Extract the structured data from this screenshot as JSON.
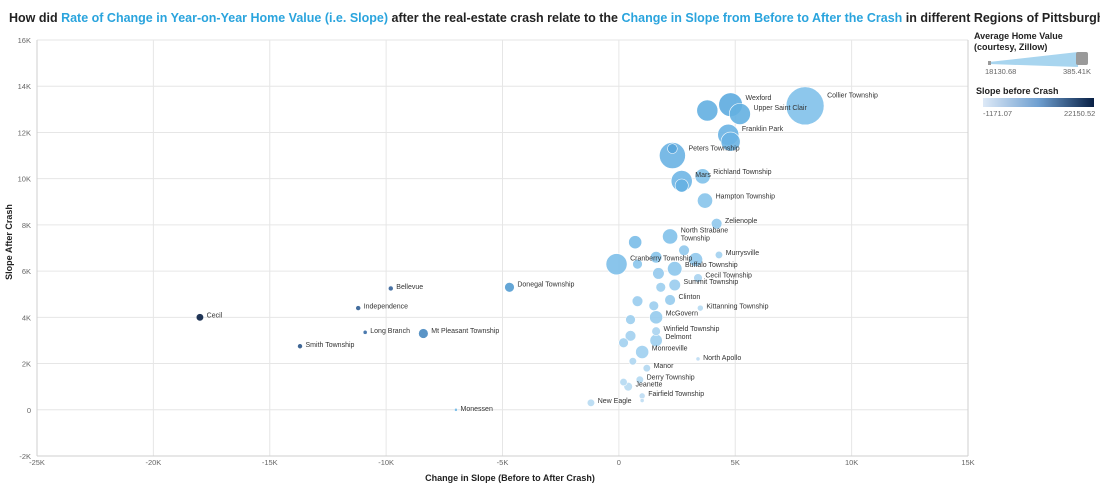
{
  "title": {
    "p1": "How did ",
    "hl1": "Rate of Change in Year-on-Year Home Value (i.e. Slope)",
    "p2": " after the real-estate crash relate to the ",
    "hl2": "Change in Slope from Before to After the Crash",
    "p3": " in different Regions of Pittsburgh?"
  },
  "legend": {
    "size_title_1": "Average Home Value",
    "size_title_2": "(courtesy, Zillow)",
    "size_min": "18130.68",
    "size_max": "385.41K",
    "color_title": "Slope before Crash",
    "color_min": "-1171.07",
    "color_max": "22150.52"
  },
  "colors": {
    "accent": "#2aa4dd",
    "grid": "#e6e6e6",
    "color_low": "#dde9f7",
    "color_high": "#081f44"
  },
  "chart_data": {
    "type": "scatter",
    "xlabel": "Change in Slope (Before to After Crash)",
    "ylabel": "Slope After Crash",
    "xlim": [
      -25000,
      15000
    ],
    "ylim": [
      -2000,
      16000
    ],
    "x_ticks": [
      {
        "v": -25000,
        "label": "-25K"
      },
      {
        "v": -20000,
        "label": "-20K"
      },
      {
        "v": -15000,
        "label": "-15K"
      },
      {
        "v": -10000,
        "label": "-10K"
      },
      {
        "v": -5000,
        "label": "-5K"
      },
      {
        "v": 0,
        "label": "0"
      },
      {
        "v": 5000,
        "label": "5K"
      },
      {
        "v": 10000,
        "label": "10K"
      },
      {
        "v": 15000,
        "label": "15K"
      }
    ],
    "y_ticks": [
      {
        "v": -2000,
        "label": "-2K"
      },
      {
        "v": 0,
        "label": "0"
      },
      {
        "v": 2000,
        "label": "2K"
      },
      {
        "v": 4000,
        "label": "4K"
      },
      {
        "v": 6000,
        "label": "6K"
      },
      {
        "v": 8000,
        "label": "8K"
      },
      {
        "v": 10000,
        "label": "10K"
      },
      {
        "v": 12000,
        "label": "12K"
      },
      {
        "v": 14000,
        "label": "14K"
      },
      {
        "v": 16000,
        "label": "16K"
      }
    ],
    "points": [
      {
        "label": "Collier Township",
        "x": 8000,
        "y": 13150,
        "value": 385000,
        "slope_before": 5200
      },
      {
        "label": "Wexford",
        "x": 4800,
        "y": 13200,
        "value": 160000,
        "slope_before": 8400
      },
      {
        "label": "Upper Saint Clair",
        "x": 5200,
        "y": 12800,
        "value": 130000,
        "slope_before": 7700
      },
      {
        "label": "",
        "x": 3800,
        "y": 12950,
        "value": 130000,
        "slope_before": 7800
      },
      {
        "label": "Franklin Park",
        "x": 4700,
        "y": 11900,
        "value": 130000,
        "slope_before": 7200
      },
      {
        "label": "",
        "x": 4800,
        "y": 11600,
        "value": 110000,
        "slope_before": 7200
      },
      {
        "label": "Peters Township",
        "x": 2300,
        "y": 11000,
        "value": 190000,
        "slope_before": 7200
      },
      {
        "label": "",
        "x": 2300,
        "y": 11300,
        "value": 40000,
        "slope_before": 9000
      },
      {
        "label": "Mars",
        "x": 2700,
        "y": 9900,
        "value": 130000,
        "slope_before": 6800
      },
      {
        "label": "",
        "x": 2700,
        "y": 9700,
        "value": 60000,
        "slope_before": 7600
      },
      {
        "label": "Richland Township",
        "x": 3600,
        "y": 10100,
        "value": 75000,
        "slope_before": 5200
      },
      {
        "label": "Hampton Township",
        "x": 3700,
        "y": 9050,
        "value": 75000,
        "slope_before": 4800
      },
      {
        "label": "Zelienople",
        "x": 4200,
        "y": 8050,
        "value": 45000,
        "slope_before": 4200
      },
      {
        "label": "North Strabane Township",
        "x": 2200,
        "y": 7500,
        "value": 75000,
        "slope_before": 5200
      },
      {
        "label": "",
        "x": 700,
        "y": 7250,
        "value": 60000,
        "slope_before": 5800
      },
      {
        "label": "Murrysville",
        "x": 4300,
        "y": 6700,
        "value": 30000,
        "slope_before": 3000
      },
      {
        "label": "",
        "x": 2800,
        "y": 6900,
        "value": 45000,
        "slope_before": 4200
      },
      {
        "label": "",
        "x": 3300,
        "y": 6500,
        "value": 65000,
        "slope_before": 4200
      },
      {
        "label": "Cranberry Township",
        "x": -100,
        "y": 6300,
        "value": 130000,
        "slope_before": 5500
      },
      {
        "label": "",
        "x": 800,
        "y": 6300,
        "value": 40000,
        "slope_before": 4600
      },
      {
        "label": "",
        "x": 1600,
        "y": 6600,
        "value": 50000,
        "slope_before": 4800
      },
      {
        "label": "Buffalo Township",
        "x": 2400,
        "y": 6100,
        "value": 70000,
        "slope_before": 4400
      },
      {
        "label": "",
        "x": 1700,
        "y": 5900,
        "value": 50000,
        "slope_before": 4000
      },
      {
        "label": "Cecil Township",
        "x": 3400,
        "y": 5700,
        "value": 35000,
        "slope_before": 2600
      },
      {
        "label": "Summit Township",
        "x": 2400,
        "y": 5400,
        "value": 50000,
        "slope_before": 3600
      },
      {
        "label": "",
        "x": 1800,
        "y": 5300,
        "value": 40000,
        "slope_before": 3400
      },
      {
        "label": "Clinton",
        "x": 2200,
        "y": 4750,
        "value": 45000,
        "slope_before": 3800
      },
      {
        "label": "",
        "x": 800,
        "y": 4700,
        "value": 45000,
        "slope_before": 3600
      },
      {
        "label": "",
        "x": 1500,
        "y": 4500,
        "value": 40000,
        "slope_before": 3500
      },
      {
        "label": "Kittanning Township",
        "x": 3500,
        "y": 4400,
        "value": 25000,
        "slope_before": 1800
      },
      {
        "label": "McGovern",
        "x": 1600,
        "y": 4000,
        "value": 60000,
        "slope_before": 3800
      },
      {
        "label": "",
        "x": 500,
        "y": 3900,
        "value": 40000,
        "slope_before": 3400
      },
      {
        "label": "Winfield Township",
        "x": 1600,
        "y": 3400,
        "value": 35000,
        "slope_before": 2600
      },
      {
        "label": "Delmont",
        "x": 1600,
        "y": 3000,
        "value": 55000,
        "slope_before": 3400
      },
      {
        "label": "",
        "x": 500,
        "y": 3200,
        "value": 45000,
        "slope_before": 3000
      },
      {
        "label": "",
        "x": 200,
        "y": 2900,
        "value": 40000,
        "slope_before": 3000
      },
      {
        "label": "Monroeville",
        "x": 1000,
        "y": 2500,
        "value": 60000,
        "slope_before": 3200
      },
      {
        "label": "North Apollo",
        "x": 3400,
        "y": 2200,
        "value": 20000,
        "slope_before": 1200
      },
      {
        "label": "Manor",
        "x": 1200,
        "y": 1800,
        "value": 30000,
        "slope_before": 2000
      },
      {
        "label": "",
        "x": 600,
        "y": 2100,
        "value": 30000,
        "slope_before": 2200
      },
      {
        "label": "Derry Township",
        "x": 900,
        "y": 1300,
        "value": 30000,
        "slope_before": 1800
      },
      {
        "label": "Jeanette",
        "x": 400,
        "y": 1000,
        "value": 35000,
        "slope_before": 1600
      },
      {
        "label": "",
        "x": 200,
        "y": 1200,
        "value": 30000,
        "slope_before": 1800
      },
      {
        "label": "Fairfield Township",
        "x": 1000,
        "y": 600,
        "value": 25000,
        "slope_before": 1200
      },
      {
        "label": "",
        "x": 1000,
        "y": 400,
        "value": 20000,
        "slope_before": 1100
      },
      {
        "label": "New Eagle",
        "x": -1200,
        "y": 300,
        "value": 30000,
        "slope_before": 1600
      },
      {
        "label": "Donegal Township",
        "x": -4700,
        "y": 5300,
        "value": 40000,
        "slope_before": 9800
      },
      {
        "label": "Bellevue",
        "x": -9800,
        "y": 5250,
        "value": 22000,
        "slope_before": 15200
      },
      {
        "label": "Independence",
        "x": -11200,
        "y": 4400,
        "value": 22000,
        "slope_before": 15600
      },
      {
        "label": "Long Branch",
        "x": -10900,
        "y": 3350,
        "value": 20000,
        "slope_before": 14200
      },
      {
        "label": "Mt Pleasant Township",
        "x": -8400,
        "y": 3300,
        "value": 40000,
        "slope_before": 11600
      },
      {
        "label": "Smith Township",
        "x": -13700,
        "y": 2750,
        "value": 22000,
        "slope_before": 16400
      },
      {
        "label": "Cecil",
        "x": -18000,
        "y": 4000,
        "value": 30000,
        "slope_before": 22150
      },
      {
        "label": "Monessen",
        "x": -7000,
        "y": 0,
        "value": 18130,
        "slope_before": 6500
      }
    ]
  }
}
